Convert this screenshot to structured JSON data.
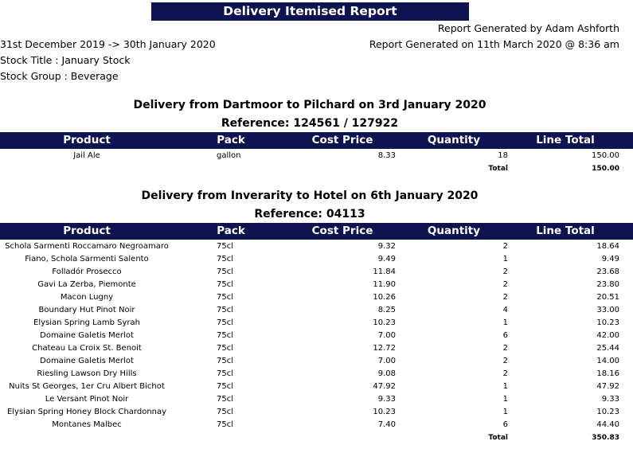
{
  "report_title": "Delivery Itemised Report",
  "generated_by": "Report Generated by Adam Ashforth",
  "generated_on": "Report Generated on 11th March 2020 @ 8:36 am",
  "date_range": "31st December 2019 -> 30th January 2020",
  "stock_title": "Stock Title : January Stock",
  "stock_group": "Stock Group : Beverage",
  "columns": {
    "product": "Product",
    "pack": "Pack",
    "cost_price": "Cost Price",
    "quantity": "Quantity",
    "line_total": "Line Total"
  },
  "total_label": "Total",
  "deliveries": [
    {
      "heading": "Delivery from Dartmoor to Pilchard on 3rd January 2020",
      "reference": "Reference: 124561 / 127922",
      "rows": [
        {
          "product": "Jail Ale",
          "pack": "gallon",
          "cost": "8.33",
          "qty": "18",
          "line": "150.00"
        }
      ],
      "total": "150.00"
    },
    {
      "heading": "Delivery from Inverarity to Hotel on 6th January 2020",
      "reference": "Reference: 04113",
      "rows": [
        {
          "product": "Schola Sarmenti Roccamaro Negroamaro",
          "pack": "75cl",
          "cost": "9.32",
          "qty": "2",
          "line": "18.64"
        },
        {
          "product": "Fiano, Schola Sarmenti Salento",
          "pack": "75cl",
          "cost": "9.49",
          "qty": "1",
          "line": "9.49"
        },
        {
          "product": "Folladór Prosecco",
          "pack": "75cl",
          "cost": "11.84",
          "qty": "2",
          "line": "23.68"
        },
        {
          "product": "Gavi La Zerba, Piemonte",
          "pack": "75cl",
          "cost": "11.90",
          "qty": "2",
          "line": "23.80"
        },
        {
          "product": "Macon Lugny",
          "pack": "75cl",
          "cost": "10.26",
          "qty": "2",
          "line": "20.51"
        },
        {
          "product": "Boundary Hut Pinot Noir",
          "pack": "75cl",
          "cost": "8.25",
          "qty": "4",
          "line": "33.00"
        },
        {
          "product": "Elysian Spring Lamb Syrah",
          "pack": "75cl",
          "cost": "10.23",
          "qty": "1",
          "line": "10.23"
        },
        {
          "product": "Domaine Galetis Merlot",
          "pack": "75cl",
          "cost": "7.00",
          "qty": "6",
          "line": "42.00"
        },
        {
          "product": "Chateau La Croix St. Benoit",
          "pack": "75cl",
          "cost": "12.72",
          "qty": "2",
          "line": "25.44"
        },
        {
          "product": "Domaine Galetis Merlot",
          "pack": "75cl",
          "cost": "7.00",
          "qty": "2",
          "line": "14.00"
        },
        {
          "product": "Riesling Lawson Dry Hills",
          "pack": "75cl",
          "cost": "9.08",
          "qty": "2",
          "line": "18.16"
        },
        {
          "product": "Nuits St Georges, 1er Cru Albert Bichot",
          "pack": "75cl",
          "cost": "47.92",
          "qty": "1",
          "line": "47.92"
        },
        {
          "product": "Le Versant Pinot Noir",
          "pack": "75cl",
          "cost": "9.33",
          "qty": "1",
          "line": "9.33"
        },
        {
          "product": "Elysian Spring Honey Block Chardonnay",
          "pack": "75cl",
          "cost": "10.23",
          "qty": "1",
          "line": "10.23"
        },
        {
          "product": "Montanes Malbec",
          "pack": "75cl",
          "cost": "7.40",
          "qty": "6",
          "line": "44.40"
        }
      ],
      "total": "350.83"
    }
  ]
}
